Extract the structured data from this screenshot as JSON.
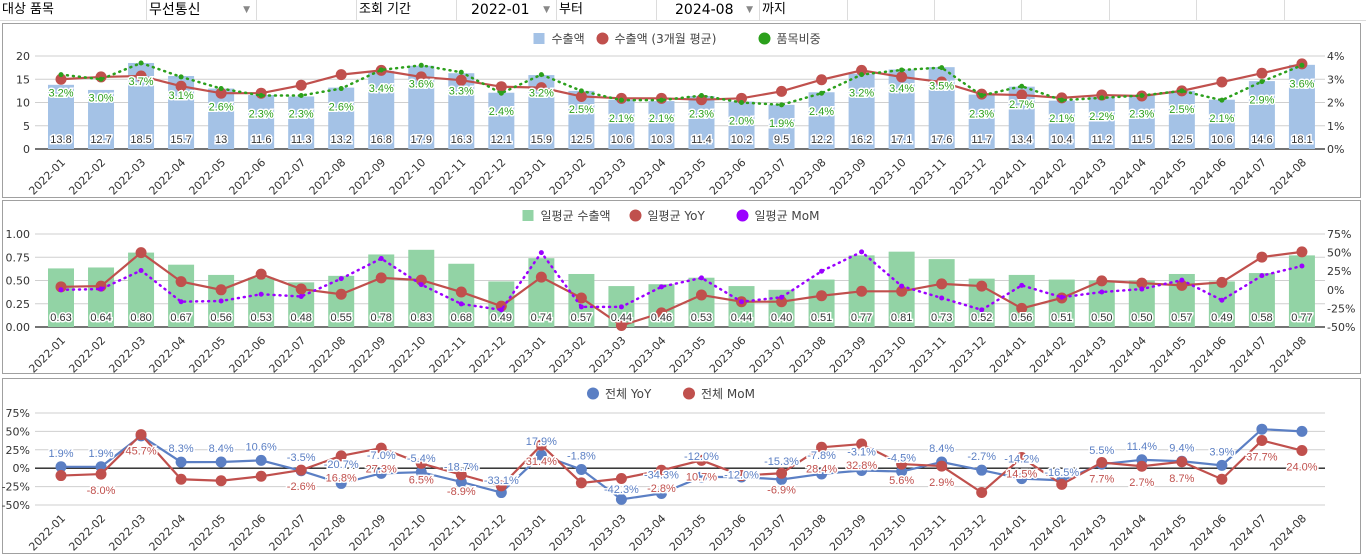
{
  "header": {
    "target_label": "대상 품목",
    "target_value": "무선통신",
    "period_label": "조회 기간",
    "start_value": "2022-01",
    "from_label": "부터",
    "end_value": "2024-08",
    "to_label": "까지"
  },
  "colors": {
    "export_bar": "#a4c2e6",
    "avg_line": "#c0504d",
    "share_line": "#2ca01c",
    "daily_bar": "#92d3a5",
    "yoy_line": "#c0504d",
    "mom_line": "#9b00ff",
    "total_yoy": "#5b7fc4",
    "total_mom": "#c0504d"
  },
  "chart_data": [
    {
      "type": "bar",
      "title": "",
      "categories": [
        "2022-01",
        "2022-02",
        "2022-03",
        "2022-04",
        "2022-05",
        "2022-06",
        "2022-07",
        "2022-08",
        "2022-09",
        "2022-10",
        "2022-11",
        "2022-12",
        "2023-01",
        "2023-02",
        "2023-03",
        "2023-04",
        "2023-05",
        "2023-06",
        "2023-07",
        "2023-08",
        "2023-09",
        "2023-10",
        "2023-11",
        "2023-12",
        "2024-01",
        "2024-02",
        "2024-03",
        "2024-04",
        "2024-05",
        "2024-06",
        "2024-07",
        "2024-08"
      ],
      "y_left": {
        "range": [
          0,
          20
        ],
        "ticks": [
          "0",
          "5",
          "10",
          "15",
          "20"
        ]
      },
      "y_right": {
        "range": [
          0,
          4
        ],
        "ticks": [
          "0%",
          "1%",
          "2%",
          "3%",
          "4%"
        ]
      },
      "legend_position": "top",
      "series": [
        {
          "name": "수출액",
          "kind": "bar",
          "axis": "left",
          "values": [
            13.8,
            12.7,
            18.5,
            15.7,
            13,
            11.6,
            11.3,
            13.2,
            16.8,
            17.9,
            16.3,
            12.1,
            15.9,
            12.5,
            10.6,
            10.3,
            11.4,
            10.2,
            9.5,
            12.2,
            16.2,
            17.1,
            17.6,
            11.7,
            13.4,
            10.4,
            11.2,
            11.5,
            12.5,
            10.6,
            14.6,
            18.1
          ],
          "labels": [
            "13.8",
            "12.7",
            "18.5",
            "15.7",
            "13",
            "11.6",
            "11.3",
            "13.2",
            "16.8",
            "17.9",
            "16.3",
            "12.1",
            "15.9",
            "12.5",
            "10.6",
            "10.3",
            "11.4",
            "10.2",
            "9.5",
            "12.2",
            "16.2",
            "17.1",
            "17.6",
            "11.7",
            "13.4",
            "10.4",
            "11.2",
            "11.5",
            "12.5",
            "10.6",
            "14.6",
            "18.1"
          ]
        },
        {
          "name": "수출액 (3개월 평균)",
          "kind": "line",
          "axis": "left",
          "values": [
            15,
            15.5,
            15.7,
            13.5,
            12,
            12,
            13.7,
            16,
            16.9,
            15.5,
            14.8,
            13.4,
            13.2,
            11.3,
            10.9,
            10.9,
            10.6,
            10.9,
            12.4,
            14.9,
            16.9,
            15.5,
            14.4,
            11.8,
            11.6,
            11.0,
            11.6,
            11.4,
            12.5,
            14.4,
            16.3,
            18.3
          ]
        },
        {
          "name": "품목비중",
          "kind": "dotted",
          "axis": "right",
          "values": [
            3.2,
            3.0,
            3.7,
            3.1,
            2.6,
            2.3,
            2.3,
            2.6,
            3.4,
            3.6,
            3.3,
            2.4,
            3.2,
            2.5,
            2.1,
            2.1,
            2.3,
            2.0,
            1.9,
            2.4,
            3.2,
            3.4,
            3.5,
            2.3,
            2.7,
            2.1,
            2.2,
            2.3,
            2.5,
            2.1,
            2.9,
            3.6
          ],
          "labels": [
            "3.2%",
            "3.0%",
            "3.7%",
            "3.1%",
            "2.6%",
            "2.3%",
            "2.3%",
            "2.6%",
            "3.4%",
            "3.6%",
            "3.3%",
            "2.4%",
            "3.2%",
            "2.5%",
            "2.1%",
            "2.1%",
            "2.3%",
            "2.0%",
            "1.9%",
            "2.4%",
            "3.2%",
            "3.4%",
            "3.5%",
            "2.3%",
            "2.7%",
            "2.1%",
            "2.2%",
            "2.3%",
            "2.5%",
            "2.1%",
            "2.9%",
            "3.6%"
          ]
        }
      ]
    },
    {
      "type": "bar",
      "title": "",
      "categories": [
        "2022-01",
        "2022-02",
        "2022-03",
        "2022-04",
        "2022-05",
        "2022-06",
        "2022-07",
        "2022-08",
        "2022-09",
        "2022-10",
        "2022-11",
        "2022-12",
        "2023-01",
        "2023-02",
        "2023-03",
        "2023-04",
        "2023-05",
        "2023-06",
        "2023-07",
        "2023-08",
        "2023-09",
        "2023-10",
        "2023-11",
        "2023-12",
        "2024-01",
        "2024-02",
        "2024-03",
        "2024-04",
        "2024-05",
        "2024-06",
        "2024-07",
        "2024-08"
      ],
      "y_left": {
        "range": [
          0,
          1
        ],
        "ticks": [
          "0.00",
          "0.25",
          "0.50",
          "0.75",
          "1.00"
        ]
      },
      "y_right": {
        "range": [
          -50,
          75
        ],
        "ticks": [
          "-50%",
          "-25%",
          "0%",
          "25%",
          "50%",
          "75%"
        ]
      },
      "legend_position": "top",
      "series": [
        {
          "name": "일평균 수출액",
          "kind": "bar",
          "axis": "left",
          "values": [
            0.63,
            0.64,
            0.8,
            0.67,
            0.56,
            0.53,
            0.48,
            0.55,
            0.78,
            0.83,
            0.68,
            0.49,
            0.74,
            0.57,
            0.44,
            0.46,
            0.53,
            0.44,
            0.4,
            0.51,
            0.77,
            0.81,
            0.73,
            0.52,
            0.56,
            0.51,
            0.5,
            0.5,
            0.57,
            0.49,
            0.58,
            0.77
          ],
          "labels": [
            "0.63",
            "0.64",
            "0.80",
            "0.67",
            "0.56",
            "0.53",
            "0.48",
            "0.55",
            "0.78",
            "0.83",
            "0.68",
            "0.49",
            "0.74",
            "0.57",
            "0.44",
            "0.46",
            "0.53",
            "0.44",
            "0.40",
            "0.51",
            "0.77",
            "0.81",
            "0.73",
            "0.52",
            "0.56",
            "0.51",
            "0.50",
            "0.50",
            "0.57",
            "0.49",
            "0.58",
            "0.77"
          ]
        },
        {
          "name": "일평균 YoY",
          "kind": "line",
          "axis": "right",
          "values": [
            4,
            5,
            50,
            11,
            0,
            21,
            1,
            -6,
            16,
            13,
            -3,
            -22,
            17,
            -11,
            -48,
            -31,
            -7,
            -16,
            -16,
            -8,
            -2,
            -2,
            8,
            5,
            -25,
            -11,
            12,
            9,
            6,
            10,
            44,
            51
          ]
        },
        {
          "name": "일평균 MoM",
          "kind": "dotted",
          "axis": "right",
          "values": [
            0,
            1,
            26,
            -16,
            -15,
            -6,
            -9,
            15,
            42,
            7,
            -19,
            -27,
            50,
            -23,
            -23,
            4,
            16,
            -16,
            -10,
            25,
            51,
            5,
            -11,
            -27,
            6,
            -10,
            -3,
            1,
            13,
            -14,
            19,
            32
          ]
        }
      ]
    },
    {
      "type": "line",
      "title": "",
      "categories": [
        "2022-01",
        "2022-02",
        "2022-03",
        "2022-04",
        "2022-05",
        "2022-06",
        "2022-07",
        "2022-08",
        "2022-09",
        "2022-10",
        "2022-11",
        "2022-12",
        "2023-01",
        "2023-02",
        "2023-03",
        "2023-04",
        "2023-05",
        "2023-06",
        "2023-07",
        "2023-08",
        "2023-09",
        "2023-10",
        "2023-11",
        "2023-12",
        "2024-01",
        "2024-02",
        "2024-03",
        "2024-04",
        "2024-05",
        "2024-06",
        "2024-07",
        "2024-08"
      ],
      "y_left": {
        "range": [
          -50,
          75
        ],
        "ticks": [
          "-50%",
          "-25%",
          "0%",
          "25%",
          "50%",
          "75%"
        ]
      },
      "legend_position": "top",
      "series": [
        {
          "name": "전체 YoY",
          "kind": "line",
          "axis": "left",
          "values": [
            1.9,
            1.9,
            44,
            8.3,
            8.4,
            10.6,
            -3.5,
            -20.7,
            -7.0,
            -5.4,
            -18.7,
            -33.1,
            17.9,
            -1.8,
            -42.3,
            -34.3,
            -12.0,
            -12.0,
            -15.3,
            -7.8,
            -3.1,
            -4.5,
            8.4,
            -2.7,
            -14.2,
            -16.5,
            5.5,
            11.4,
            9.4,
            3.9,
            53,
            50
          ],
          "labels": [
            "1.9%",
            "1.9%",
            null,
            "8.3%",
            "8.4%",
            "10.6%",
            "-3.5%",
            "-20.7%",
            "-7.0%",
            "-5.4%",
            "-18.7%",
            "-33.1%",
            "17.9%",
            "-1.8%",
            "-42.3%",
            "-34.3%",
            "-12.0%",
            "-12.0%",
            "-15.3%",
            "-7.8%",
            "-3.1%",
            "-4.5%",
            "8.4%",
            "-2.7%",
            "-14.2%",
            "-16.5%",
            "5.5%",
            "11.4%",
            "9.4%",
            "3.9%",
            null,
            null
          ]
        },
        {
          "name": "전체 MoM",
          "kind": "line",
          "axis": "left",
          "values": [
            -10,
            -8.0,
            45.7,
            -15,
            -17,
            -11,
            -2.6,
            16.8,
            27.3,
            6.5,
            -8.9,
            -24,
            31.4,
            -20,
            -14,
            -2.8,
            10.7,
            -10,
            -6.9,
            28.4,
            32.8,
            5.6,
            2.9,
            -33,
            14.5,
            -22,
            7.7,
            2.7,
            8.7,
            -15,
            37.7,
            24.0
          ],
          "labels": [
            null,
            "-8.0%",
            "45.7%",
            null,
            null,
            null,
            "-2.6%",
            "16.8%",
            "27.3%",
            "6.5%",
            "-8.9%",
            null,
            "31.4%",
            null,
            null,
            "-2.8%",
            "10.7%",
            null,
            "-6.9%",
            "28.4%",
            "32.8%",
            "5.6%",
            "2.9%",
            null,
            "14.5%",
            null,
            "7.7%",
            "2.7%",
            "8.7%",
            null,
            "37.7%",
            "24.0%"
          ]
        }
      ]
    }
  ]
}
